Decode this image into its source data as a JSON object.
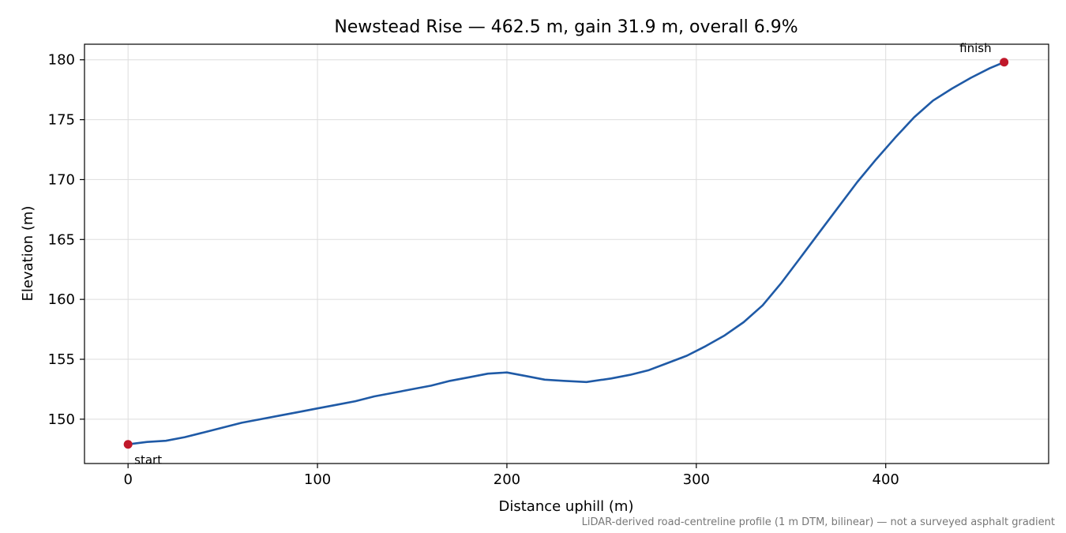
{
  "chart_data": {
    "type": "line",
    "title": "Newstead Rise — 462.5 m, gain 31.9 m, overall 6.9%",
    "xlabel": "Distance uphill (m)",
    "ylabel": "Elevation (m)",
    "footnote": "LiDAR-derived road-centreline profile (1 m DTM, bilinear) — not a surveyed asphalt gradient",
    "xlim": [
      -23,
      486
    ],
    "ylim": [
      146.3,
      181.3
    ],
    "xticks": [
      0,
      100,
      200,
      300,
      400
    ],
    "yticks": [
      150,
      155,
      160,
      165,
      170,
      175,
      180
    ],
    "grid": true,
    "series": [
      {
        "color": "#1f5aa6",
        "x": [
          0,
          10,
          20,
          30,
          40,
          50,
          60,
          70,
          80,
          90,
          100,
          110,
          120,
          130,
          140,
          150,
          160,
          170,
          180,
          190,
          200,
          210,
          220,
          230,
          242,
          255,
          265,
          275,
          285,
          295,
          305,
          315,
          325,
          335,
          345,
          355,
          365,
          375,
          385,
          395,
          405,
          415,
          425,
          435,
          445,
          455,
          462.5
        ],
        "y": [
          147.9,
          148.1,
          148.2,
          148.5,
          148.9,
          149.3,
          149.7,
          150.0,
          150.3,
          150.6,
          150.9,
          151.2,
          151.5,
          151.9,
          152.2,
          152.5,
          152.8,
          153.2,
          153.5,
          153.8,
          153.9,
          153.6,
          153.3,
          153.2,
          153.1,
          153.4,
          153.7,
          154.1,
          154.7,
          155.3,
          156.1,
          157.0,
          158.1,
          159.5,
          161.4,
          163.5,
          165.6,
          167.7,
          169.8,
          171.7,
          173.5,
          175.2,
          176.6,
          177.6,
          178.5,
          179.3,
          179.8
        ]
      }
    ],
    "markers": [
      {
        "x": 0,
        "y": 147.9,
        "label": "start",
        "color": "#c0182a"
      },
      {
        "x": 462.5,
        "y": 179.8,
        "label": "finish",
        "color": "#c0182a"
      }
    ]
  }
}
